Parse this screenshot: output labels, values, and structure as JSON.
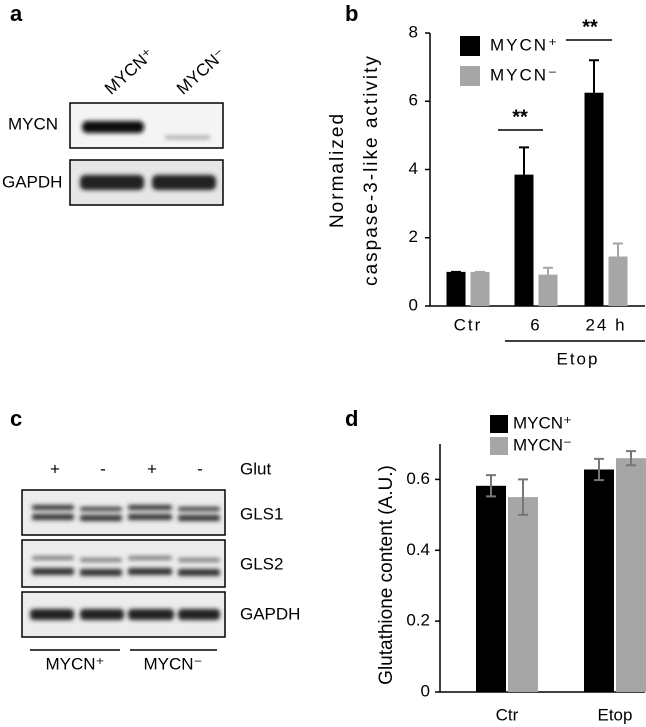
{
  "blots": [
    {
      "panel": "a",
      "lanes": [
        "MYCN⁺",
        "MYCN⁻"
      ],
      "rows": [
        "MYCN",
        "GAPDH"
      ]
    },
    {
      "panel": "c",
      "treatment": [
        "+",
        "-",
        "+",
        "-"
      ],
      "treatment_label": "Glut",
      "rows": [
        "GLS1",
        "GLS2",
        "GAPDH"
      ],
      "groups": [
        "MYCN⁺",
        "MYCN⁻"
      ]
    }
  ],
  "chart_data": [
    {
      "type": "bar",
      "panel": "b",
      "ylabel": [
        "Normalized",
        "caspase-3-like activity"
      ],
      "categories": [
        "Ctr",
        "6",
        "24 h"
      ],
      "group_label": "Etop",
      "annotations": [
        "**",
        "**"
      ],
      "series": [
        {
          "name": "MYCN⁺",
          "color": "#000000",
          "values": [
            1,
            3.85,
            6.25
          ],
          "errors": [
            0,
            0.8,
            0.95
          ]
        },
        {
          "name": "MYCN⁻",
          "color": "#a6a6a6",
          "values": [
            1,
            0.92,
            1.45
          ],
          "errors": [
            0,
            0.2,
            0.38
          ]
        }
      ],
      "ylim": [
        0,
        8
      ],
      "yticks": [
        0,
        2,
        4,
        6,
        8
      ],
      "error_bars": "upper",
      "legend": "upper left"
    },
    {
      "type": "bar",
      "panel": "d",
      "ylabel": [
        "Glutathione content (A.U.)"
      ],
      "categories": [
        "Ctr",
        "Etop"
      ],
      "series": [
        {
          "name": "MYCN⁺",
          "color": "#000000",
          "values": [
            0.582,
            0.628
          ],
          "errors": [
            0.03,
            0.03
          ]
        },
        {
          "name": "MYCN⁻",
          "color": "#a6a6a6",
          "values": [
            0.55,
            0.66
          ],
          "errors": [
            0.05,
            0.02
          ]
        }
      ],
      "ylim": [
        0,
        0.7
      ],
      "yticks": [
        0,
        0.2,
        0.4,
        0.6
      ],
      "error_bars": "both",
      "legend": "upper left"
    }
  ]
}
